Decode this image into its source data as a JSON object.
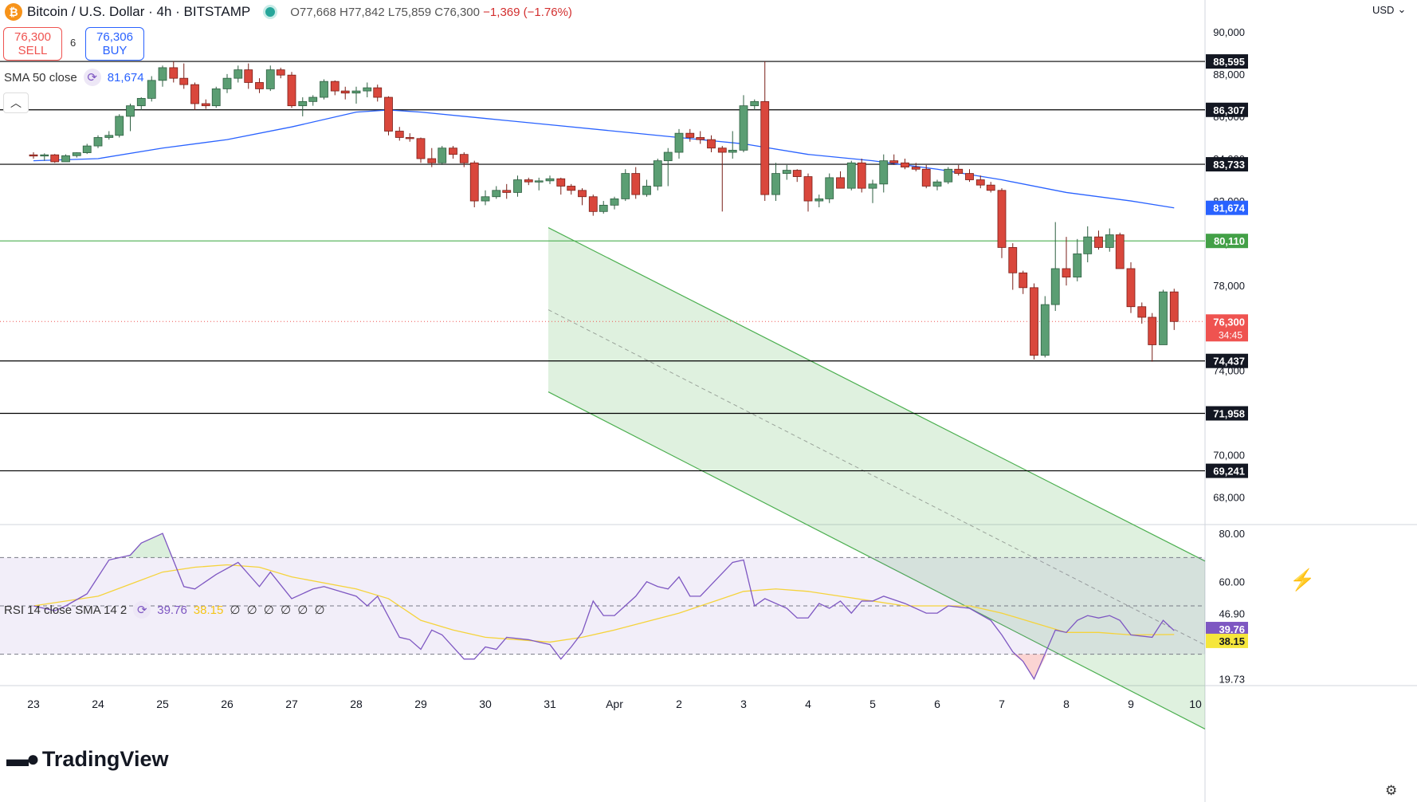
{
  "header": {
    "symbol_icon": "bitcoin-icon",
    "title": "Bitcoin / U.S. Dollar · 4h · BITSTAMP",
    "open": "O77,668",
    "high": "H77,842",
    "low": "L75,859",
    "close": "C76,300",
    "change": "−1,369 (−1.76%)"
  },
  "trade": {
    "sell_price": "76,300",
    "sell_label": "SELL",
    "spread": "6",
    "buy_price": "76,306",
    "buy_label": "BUY"
  },
  "sma_indicator": {
    "label": "SMA 50 close",
    "value": "81,674"
  },
  "rsi_indicator": {
    "label": "RSI 14 close SMA 14 2",
    "rsi_value": "39.76",
    "sma_value": "38.15",
    "placeholders": "∅ ∅ ∅ ∅ ∅ ∅"
  },
  "currency": "USD",
  "brand": "TradingView",
  "colors": {
    "up": "#26a69a",
    "down": "#ef5350",
    "up_fill": "#5b9e73",
    "down_fill": "#d9473c",
    "sma": "#2962ff",
    "rsi": "#7e57c2",
    "rsi_sma": "#f5d33b",
    "channel": "#4caf50"
  },
  "chart_data": {
    "type": "candlestick",
    "x_ticks": [
      "23",
      "24",
      "25",
      "26",
      "27",
      "28",
      "29",
      "30",
      "31",
      "Apr",
      "2",
      "3",
      "4",
      "5",
      "6",
      "7",
      "8",
      "9",
      "10"
    ],
    "y_ticks": [
      "90,000",
      "88,000",
      "86,000",
      "84,000",
      "82,000",
      "80,000",
      "78,000",
      "76,000",
      "74,000",
      "72,000",
      "70,000",
      "68,000"
    ],
    "ylim": [
      66700,
      91500
    ],
    "horizontal_levels": [
      {
        "value": 88595,
        "label": "88,595",
        "color": "#000000"
      },
      {
        "value": 86307,
        "label": "86,307",
        "color": "#000000"
      },
      {
        "value": 83733,
        "label": "83,733",
        "color": "#000000"
      },
      {
        "value": 80110,
        "label": "80,110",
        "color": "#4caf50"
      },
      {
        "value": 74437,
        "label": "74,437",
        "color": "#000000"
      },
      {
        "value": 71958,
        "label": "71,958",
        "color": "#000000"
      },
      {
        "value": 69241,
        "label": "69,241",
        "color": "#000000"
      }
    ],
    "price_badges": [
      {
        "value": 81674,
        "label": "81,674",
        "color": "#2962ff"
      },
      {
        "value": 76300,
        "label": "76,300",
        "sublabel": "34:45",
        "color": "#ef5350"
      }
    ],
    "channel": {
      "upper": [
        [
          2.87,
          88650
        ],
        [
          10.0,
          77600
        ]
      ],
      "lower": [
        [
          7.04,
          74437
        ],
        [
          10.0,
          69800
        ]
      ],
      "shade_start_x": 1.0
    },
    "candles": [
      [
        0.0,
        84180,
        84300,
        84000,
        84160
      ],
      [
        0.17,
        84160,
        84250,
        83900,
        84180
      ],
      [
        0.33,
        84180,
        84220,
        83800,
        83850
      ],
      [
        0.5,
        83850,
        84200,
        83850,
        84140
      ],
      [
        0.67,
        84140,
        84300,
        84050,
        84280
      ],
      [
        0.83,
        84280,
        84700,
        84220,
        84600
      ],
      [
        1.0,
        84600,
        85100,
        84500,
        85000
      ],
      [
        1.17,
        85000,
        85300,
        84900,
        85100
      ],
      [
        1.33,
        85100,
        86100,
        85000,
        86000
      ],
      [
        1.5,
        86000,
        86600,
        85300,
        86500
      ],
      [
        1.67,
        86500,
        86900,
        86300,
        86850
      ],
      [
        1.83,
        86850,
        87900,
        86700,
        87700
      ],
      [
        2.0,
        87700,
        88400,
        87400,
        88300
      ],
      [
        2.17,
        88300,
        88600,
        87600,
        87800
      ],
      [
        2.33,
        87800,
        88500,
        87300,
        87500
      ],
      [
        2.5,
        87500,
        87600,
        86300,
        86600
      ],
      [
        2.67,
        86600,
        86800,
        86350,
        86500
      ],
      [
        2.83,
        86500,
        87400,
        86400,
        87300
      ],
      [
        3.0,
        87300,
        88000,
        87100,
        87800
      ],
      [
        3.17,
        87800,
        88400,
        87600,
        88200
      ],
      [
        3.33,
        88200,
        88500,
        87300,
        87600
      ],
      [
        3.5,
        87600,
        87800,
        87100,
        87300
      ],
      [
        3.67,
        87300,
        88400,
        87200,
        88200
      ],
      [
        3.83,
        88200,
        88300,
        87800,
        87950
      ],
      [
        4.0,
        87950,
        88100,
        86400,
        86500
      ],
      [
        4.17,
        86500,
        86900,
        86000,
        86700
      ],
      [
        4.33,
        86700,
        87000,
        86500,
        86900
      ],
      [
        4.5,
        86900,
        87750,
        86800,
        87650
      ],
      [
        4.67,
        87650,
        87700,
        87000,
        87200
      ],
      [
        4.83,
        87200,
        87400,
        86800,
        87100
      ],
      [
        5.0,
        87100,
        87400,
        86600,
        87200
      ],
      [
        5.17,
        87200,
        87600,
        86900,
        87350
      ],
      [
        5.33,
        87350,
        87500,
        86700,
        86900
      ],
      [
        5.5,
        86900,
        86950,
        85100,
        85300
      ],
      [
        5.67,
        85300,
        85500,
        84850,
        85000
      ],
      [
        5.83,
        85000,
        85200,
        84800,
        84950
      ],
      [
        6.0,
        84950,
        85000,
        83800,
        84000
      ],
      [
        6.17,
        84000,
        84500,
        83600,
        83800
      ],
      [
        6.33,
        83800,
        84600,
        83700,
        84500
      ],
      [
        6.5,
        84500,
        84600,
        84000,
        84200
      ],
      [
        6.67,
        84200,
        84300,
        83600,
        83800
      ],
      [
        6.83,
        83800,
        83900,
        81700,
        82000
      ],
      [
        7.0,
        82000,
        82500,
        81800,
        82200
      ],
      [
        7.17,
        82200,
        82700,
        82100,
        82500
      ],
      [
        7.33,
        82500,
        82800,
        82100,
        82400
      ],
      [
        7.5,
        82400,
        83200,
        82200,
        83000
      ],
      [
        7.67,
        83000,
        83100,
        82750,
        82900
      ],
      [
        7.83,
        82900,
        83100,
        82500,
        82950
      ],
      [
        8.0,
        82950,
        83200,
        82800,
        83050
      ],
      [
        8.17,
        83050,
        83100,
        82300,
        82700
      ],
      [
        8.33,
        82700,
        82800,
        82300,
        82500
      ],
      [
        8.5,
        82500,
        82600,
        81800,
        82200
      ],
      [
        8.67,
        82200,
        82300,
        81300,
        81500
      ],
      [
        8.83,
        81500,
        82000,
        81400,
        81800
      ],
      [
        9.0,
        81800,
        82200,
        81600,
        82100
      ],
      [
        9.17,
        82100,
        83500,
        82000,
        83300
      ],
      [
        9.33,
        83300,
        83600,
        82100,
        82300
      ],
      [
        9.5,
        82300,
        83000,
        82200,
        82700
      ],
      [
        9.67,
        82700,
        84000,
        82500,
        83900
      ],
      [
        9.83,
        83900,
        84500,
        82700,
        84300
      ],
      [
        10.0,
        84300,
        85400,
        84000,
        85200
      ],
      [
        10.17,
        85200,
        85400,
        84800,
        85000
      ],
      [
        10.33,
        85000,
        85300,
        84700,
        84900
      ],
      [
        10.5,
        84900,
        85100,
        84300,
        84500
      ],
      [
        10.67,
        84500,
        84600,
        81500,
        84300
      ],
      [
        10.83,
        84300,
        85300,
        84000,
        84400
      ],
      [
        11.0,
        84400,
        87000,
        84300,
        86500
      ],
      [
        11.17,
        86500,
        86800,
        86300,
        86700
      ],
      [
        11.33,
        86700,
        88600,
        82000,
        82300
      ],
      [
        11.5,
        82300,
        83800,
        82000,
        83300
      ],
      [
        11.67,
        83300,
        83700,
        83000,
        83450
      ],
      [
        11.83,
        83450,
        83500,
        82900,
        83150
      ],
      [
        12.0,
        83150,
        83300,
        81500,
        82000
      ],
      [
        12.17,
        82000,
        82300,
        81700,
        82100
      ],
      [
        12.33,
        82100,
        83300,
        81900,
        83100
      ],
      [
        12.5,
        83100,
        83400,
        82700,
        82600
      ],
      [
        12.67,
        82600,
        83900,
        82500,
        83800
      ],
      [
        12.83,
        83800,
        84000,
        82400,
        82600
      ],
      [
        13.0,
        82600,
        83000,
        81900,
        82800
      ],
      [
        13.17,
        82800,
        84200,
        82400,
        83900
      ],
      [
        13.33,
        83900,
        84200,
        83700,
        83800
      ],
      [
        13.5,
        83800,
        84000,
        83500,
        83600
      ],
      [
        13.67,
        83600,
        83800,
        83400,
        83500
      ],
      [
        13.83,
        83500,
        83700,
        82600,
        82700
      ],
      [
        14.0,
        82700,
        83000,
        82500,
        82900
      ],
      [
        14.17,
        82900,
        83600,
        82800,
        83500
      ],
      [
        14.33,
        83500,
        83700,
        83200,
        83300
      ],
      [
        14.5,
        83300,
        83500,
        82900,
        83000
      ],
      [
        14.67,
        83000,
        83200,
        82600,
        82750
      ],
      [
        14.83,
        82750,
        82900,
        82400,
        82500
      ],
      [
        15.0,
        82500,
        82600,
        79300,
        79800
      ],
      [
        15.17,
        79800,
        80000,
        77800,
        78600
      ],
      [
        15.33,
        78600,
        78700,
        77600,
        77900
      ],
      [
        15.5,
        77900,
        78100,
        74500,
        74700
      ],
      [
        15.67,
        74700,
        77500,
        74600,
        77100
      ],
      [
        15.83,
        77100,
        81000,
        76800,
        78800
      ],
      [
        16.0,
        78800,
        80300,
        78000,
        78400
      ],
      [
        16.17,
        78400,
        80200,
        78200,
        79500
      ],
      [
        16.33,
        79500,
        80800,
        79100,
        80300
      ],
      [
        16.5,
        80300,
        80600,
        79700,
        79800
      ],
      [
        16.67,
        79800,
        80700,
        79600,
        80400
      ],
      [
        16.83,
        80400,
        80500,
        79000,
        78800
      ],
      [
        17.0,
        78800,
        79100,
        76700,
        77000
      ],
      [
        17.17,
        77000,
        77200,
        76200,
        76500
      ],
      [
        17.33,
        76500,
        76700,
        74400,
        75200
      ],
      [
        17.5,
        75200,
        77800,
        75200,
        77700
      ],
      [
        17.67,
        77700,
        77850,
        75900,
        76300
      ]
    ],
    "sma50": [
      [
        0.0,
        83900
      ],
      [
        1.0,
        84000
      ],
      [
        2.0,
        84500
      ],
      [
        3.0,
        84900
      ],
      [
        4.0,
        85500
      ],
      [
        5.0,
        86200
      ],
      [
        5.5,
        86300
      ],
      [
        6.0,
        86200
      ],
      [
        7.0,
        85900
      ],
      [
        8.0,
        85600
      ],
      [
        9.0,
        85300
      ],
      [
        10.0,
        85000
      ],
      [
        11.0,
        84700
      ],
      [
        12.0,
        84200
      ],
      [
        13.0,
        83900
      ],
      [
        14.0,
        83500
      ],
      [
        15.0,
        83000
      ],
      [
        16.0,
        82400
      ],
      [
        17.0,
        82000
      ],
      [
        17.67,
        81674
      ]
    ],
    "rsi": {
      "ylim": [
        17,
        83
      ],
      "y_ticks": [
        "80.00",
        "60.00",
        "46.90",
        "39.76",
        "38.15",
        "19.73"
      ],
      "bands": [
        70,
        50,
        30
      ],
      "values": [
        [
          0.0,
          50
        ],
        [
          0.33,
          48
        ],
        [
          0.5,
          50
        ],
        [
          0.83,
          55
        ],
        [
          1.0,
          62
        ],
        [
          1.17,
          69
        ],
        [
          1.5,
          71
        ],
        [
          1.67,
          76
        ],
        [
          2.0,
          80
        ],
        [
          2.33,
          58
        ],
        [
          2.5,
          57
        ],
        [
          2.83,
          63
        ],
        [
          3.17,
          68
        ],
        [
          3.5,
          58
        ],
        [
          3.67,
          64
        ],
        [
          4.0,
          53
        ],
        [
          4.33,
          57
        ],
        [
          4.5,
          58
        ],
        [
          5.0,
          54
        ],
        [
          5.17,
          50
        ],
        [
          5.33,
          54
        ],
        [
          5.67,
          37
        ],
        [
          5.83,
          36
        ],
        [
          6.0,
          32
        ],
        [
          6.17,
          40
        ],
        [
          6.33,
          38
        ],
        [
          6.67,
          28
        ],
        [
          6.83,
          28
        ],
        [
          7.0,
          33
        ],
        [
          7.17,
          32
        ],
        [
          7.33,
          37
        ],
        [
          7.67,
          36
        ],
        [
          7.83,
          35
        ],
        [
          8.0,
          34
        ],
        [
          8.17,
          28
        ],
        [
          8.33,
          33
        ],
        [
          8.5,
          39
        ],
        [
          8.67,
          52
        ],
        [
          8.83,
          46
        ],
        [
          9.0,
          46
        ],
        [
          9.33,
          54
        ],
        [
          9.5,
          60
        ],
        [
          9.67,
          58
        ],
        [
          9.83,
          57
        ],
        [
          10.0,
          62
        ],
        [
          10.17,
          54
        ],
        [
          10.33,
          54
        ],
        [
          10.83,
          68
        ],
        [
          11.0,
          69
        ],
        [
          11.17,
          50
        ],
        [
          11.33,
          53
        ],
        [
          11.67,
          49
        ],
        [
          11.83,
          45
        ],
        [
          12.0,
          45
        ],
        [
          12.17,
          51
        ],
        [
          12.33,
          49
        ],
        [
          12.5,
          52
        ],
        [
          12.67,
          47
        ],
        [
          12.83,
          52
        ],
        [
          13.0,
          52
        ],
        [
          13.17,
          54
        ],
        [
          13.5,
          51
        ],
        [
          13.83,
          47
        ],
        [
          14.0,
          47
        ],
        [
          14.17,
          50
        ],
        [
          14.5,
          49
        ],
        [
          14.83,
          44
        ],
        [
          15.0,
          38
        ],
        [
          15.17,
          31
        ],
        [
          15.33,
          27
        ],
        [
          15.5,
          19.73
        ],
        [
          15.83,
          40
        ],
        [
          16.0,
          39
        ],
        [
          16.17,
          44
        ],
        [
          16.33,
          46
        ],
        [
          16.5,
          45
        ],
        [
          16.67,
          46
        ],
        [
          16.83,
          44
        ],
        [
          17.0,
          38
        ],
        [
          17.33,
          37
        ],
        [
          17.5,
          44
        ],
        [
          17.67,
          39.76
        ]
      ],
      "sma": [
        [
          0.0,
          50
        ],
        [
          1.0,
          54
        ],
        [
          1.5,
          59
        ],
        [
          2.0,
          64
        ],
        [
          2.5,
          66
        ],
        [
          3.0,
          67
        ],
        [
          3.5,
          66
        ],
        [
          4.0,
          62
        ],
        [
          5.0,
          57
        ],
        [
          5.5,
          53
        ],
        [
          6.0,
          44
        ],
        [
          6.5,
          40
        ],
        [
          7.0,
          37
        ],
        [
          8.0,
          35
        ],
        [
          8.5,
          37
        ],
        [
          9.0,
          40
        ],
        [
          10.0,
          47
        ],
        [
          10.67,
          53
        ],
        [
          11.0,
          56
        ],
        [
          11.5,
          57
        ],
        [
          12.0,
          56
        ],
        [
          12.5,
          54
        ],
        [
          13.0,
          52
        ],
        [
          13.5,
          50
        ],
        [
          14.0,
          50
        ],
        [
          14.5,
          50
        ],
        [
          15.0,
          47
        ],
        [
          15.5,
          43
        ],
        [
          16.0,
          39
        ],
        [
          16.5,
          39
        ],
        [
          17.0,
          38
        ],
        [
          17.67,
          38.15
        ]
      ]
    }
  }
}
